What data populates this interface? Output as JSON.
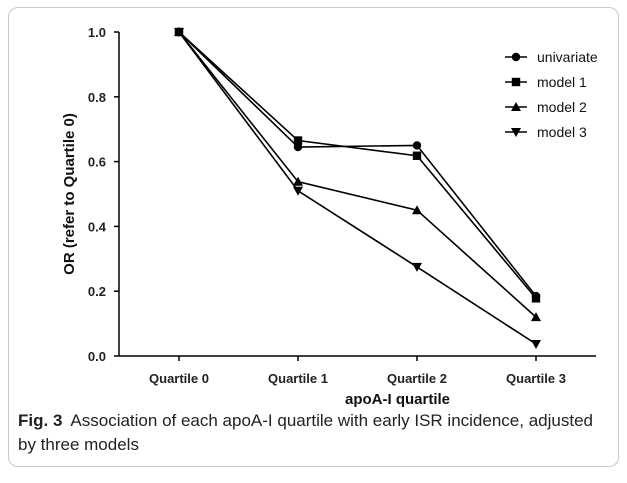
{
  "caption": {
    "label": "Fig. 3",
    "text": "Association of each apoA-I quartile with early ISR incidence, adjusted by three models"
  },
  "chart_data": {
    "type": "line",
    "title": "",
    "xlabel": "apoA-I quartile",
    "ylabel": "OR (refer to Quartile 0)",
    "categories": [
      "Quartile 0",
      "Quartile 1",
      "Quartile 2",
      "Quartile 3"
    ],
    "ylim": [
      0,
      1.0
    ],
    "yticks": [
      0.0,
      0.2,
      0.4,
      0.6,
      0.8,
      1.0
    ],
    "ytick_labels": [
      "0.0",
      "0.2",
      "0.4",
      "0.6",
      "0.8",
      "1.0"
    ],
    "grid": false,
    "legend_position": "top-right",
    "series": [
      {
        "name": "univariate",
        "marker": "circle",
        "values": [
          1.0,
          0.645,
          0.65,
          0.185
        ]
      },
      {
        "name": "model 1",
        "marker": "square",
        "values": [
          1.0,
          0.665,
          0.618,
          0.178
        ]
      },
      {
        "name": "model 2",
        "marker": "triangle-up",
        "values": [
          1.0,
          0.538,
          0.45,
          0.12
        ]
      },
      {
        "name": "model 3",
        "marker": "triangle-down",
        "values": [
          1.0,
          0.51,
          0.275,
          0.037
        ]
      }
    ],
    "colors": {
      "line": "#000000",
      "axis": "#000000"
    }
  }
}
